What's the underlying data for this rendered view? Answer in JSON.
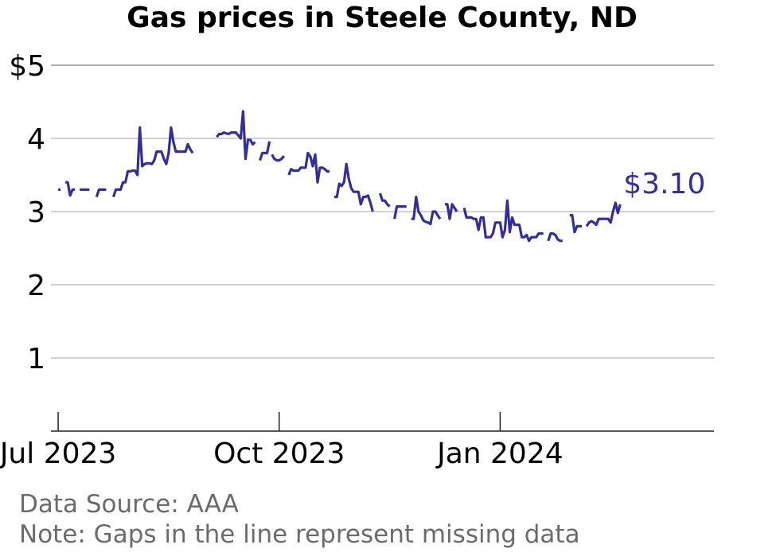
{
  "chart_data": {
    "type": "line",
    "title": "Gas prices in Steele County, ND",
    "xlabel": "",
    "ylabel": "",
    "ylim": [
      0,
      5
    ],
    "xlim": [
      "2023-06-28",
      "2024-03-30"
    ],
    "y_ticks": [
      1,
      2,
      3,
      4,
      5
    ],
    "y_tick_labels": [
      "1",
      "2",
      "3",
      "4",
      "$5"
    ],
    "x_ticks": [
      {
        "date": "2023-07-01",
        "label": "Jul 2023"
      },
      {
        "date": "2023-10-01",
        "label": "Oct 2023"
      },
      {
        "date": "2024-01-01",
        "label": "Jan 2024"
      }
    ],
    "grid": "horizontal",
    "line_color": "#332d9e",
    "end_label": "$3.10",
    "series": [
      {
        "segments": [
          [
            [
              "2023-07-01",
              3.3
            ],
            [
              "2023-07-02",
              3.3
            ]
          ],
          [
            [
              "2023-07-04",
              3.4
            ],
            [
              "2023-07-05",
              3.4
            ],
            [
              "2023-07-06",
              3.22
            ],
            [
              "2023-07-07",
              3.3
            ],
            [
              "2023-07-08",
              3.3
            ]
          ],
          [
            [
              "2023-07-10",
              3.3
            ],
            [
              "2023-07-11",
              3.3
            ],
            [
              "2023-07-12",
              3.3
            ],
            [
              "2023-07-13",
              3.3
            ],
            [
              "2023-07-14",
              3.3
            ]
          ],
          [
            [
              "2023-07-17",
              3.2
            ],
            [
              "2023-07-18",
              3.3
            ],
            [
              "2023-07-19",
              3.3
            ],
            [
              "2023-07-20",
              3.3
            ],
            [
              "2023-07-21",
              3.3
            ]
          ],
          [
            [
              "2023-07-24",
              3.2
            ],
            [
              "2023-07-25",
              3.3
            ],
            [
              "2023-07-26",
              3.3
            ],
            [
              "2023-07-27",
              3.3
            ],
            [
              "2023-07-28",
              3.4
            ],
            [
              "2023-07-29",
              3.4
            ],
            [
              "2023-07-30",
              3.55
            ],
            [
              "2023-07-31",
              3.55
            ],
            [
              "2023-08-01",
              3.56
            ],
            [
              "2023-08-02",
              3.56
            ],
            [
              "2023-08-03",
              3.5
            ],
            [
              "2023-08-04",
              4.15
            ],
            [
              "2023-08-05",
              3.62
            ],
            [
              "2023-08-06",
              3.65
            ],
            [
              "2023-08-07",
              3.66
            ],
            [
              "2023-08-08",
              3.66
            ],
            [
              "2023-08-09",
              3.65
            ],
            [
              "2023-08-10",
              3.7
            ],
            [
              "2023-08-11",
              3.82
            ],
            [
              "2023-08-12",
              3.82
            ],
            [
              "2023-08-13",
              3.82
            ],
            [
              "2023-08-14",
              3.72
            ],
            [
              "2023-08-15",
              3.65
            ],
            [
              "2023-08-16",
              3.8
            ],
            [
              "2023-08-17",
              4.15
            ],
            [
              "2023-08-18",
              3.95
            ],
            [
              "2023-08-19",
              3.82
            ],
            [
              "2023-08-20",
              3.82
            ],
            [
              "2023-08-21",
              3.82
            ],
            [
              "2023-08-22",
              3.82
            ],
            [
              "2023-08-23",
              3.82
            ],
            [
              "2023-08-24",
              3.92
            ],
            [
              "2023-08-25",
              3.85
            ],
            [
              "2023-08-26",
              3.8
            ]
          ],
          [
            [
              "2023-09-05",
              4.02
            ],
            [
              "2023-09-06",
              4.06
            ],
            [
              "2023-09-07",
              4.06
            ],
            [
              "2023-09-08",
              4.08
            ],
            [
              "2023-09-09",
              4.07
            ],
            [
              "2023-09-10",
              4.06
            ],
            [
              "2023-09-11",
              4.08
            ],
            [
              "2023-09-12",
              4.08
            ],
            [
              "2023-09-13",
              4.08
            ],
            [
              "2023-09-14",
              4.04
            ],
            [
              "2023-09-15",
              4.0
            ],
            [
              "2023-09-16",
              4.37
            ],
            [
              "2023-09-17",
              3.72
            ],
            [
              "2023-09-18",
              3.98
            ],
            [
              "2023-09-19",
              3.98
            ],
            [
              "2023-09-20",
              3.92
            ],
            [
              "2023-09-21",
              3.95
            ]
          ],
          [
            [
              "2023-09-23",
              3.7
            ],
            [
              "2023-09-24",
              3.8
            ],
            [
              "2023-09-25",
              3.8
            ],
            [
              "2023-09-26",
              3.8
            ],
            [
              "2023-09-27",
              3.96
            ]
          ],
          [
            [
              "2023-09-28",
              3.78
            ],
            [
              "2023-09-29",
              3.72
            ],
            [
              "2023-09-30",
              3.7
            ],
            [
              "2023-10-01",
              3.7
            ],
            [
              "2023-10-02",
              3.72
            ],
            [
              "2023-10-03",
              3.76
            ]
          ],
          [
            [
              "2023-10-05",
              3.5
            ],
            [
              "2023-10-06",
              3.58
            ],
            [
              "2023-10-07",
              3.56
            ],
            [
              "2023-10-08",
              3.56
            ],
            [
              "2023-10-09",
              3.56
            ],
            [
              "2023-10-10",
              3.6
            ],
            [
              "2023-10-11",
              3.6
            ],
            [
              "2023-10-12",
              3.6
            ],
            [
              "2023-10-13",
              3.8
            ],
            [
              "2023-10-14",
              3.75
            ],
            [
              "2023-10-15",
              3.62
            ],
            [
              "2023-10-16",
              3.78
            ],
            [
              "2023-10-17",
              3.4
            ],
            [
              "2023-10-18",
              3.6
            ],
            [
              "2023-10-19",
              3.6
            ],
            [
              "2023-10-20",
              3.58
            ],
            [
              "2023-10-21",
              3.55
            ],
            [
              "2023-10-22",
              3.55
            ]
          ],
          [
            [
              "2023-10-24",
              3.2
            ],
            [
              "2023-10-25",
              3.2
            ],
            [
              "2023-10-26",
              3.38
            ],
            [
              "2023-10-27",
              3.35
            ],
            [
              "2023-10-28",
              3.4
            ],
            [
              "2023-10-29",
              3.65
            ],
            [
              "2023-10-30",
              3.45
            ],
            [
              "2023-10-31",
              3.32
            ],
            [
              "2023-11-01",
              3.27
            ],
            [
              "2023-11-02",
              3.27
            ],
            [
              "2023-11-03",
              3.27
            ],
            [
              "2023-11-04",
              3.1
            ],
            [
              "2023-11-05",
              3.2
            ],
            [
              "2023-11-06",
              3.2
            ],
            [
              "2023-11-07",
              3.22
            ],
            [
              "2023-11-08",
              3.12
            ],
            [
              "2023-11-09",
              3.0
            ]
          ],
          [
            [
              "2023-11-12",
              3.25
            ],
            [
              "2023-11-13",
              3.15
            ],
            [
              "2023-11-14",
              3.15
            ],
            [
              "2023-11-15",
              3.1
            ],
            [
              "2023-11-16",
              3.07
            ]
          ],
          [
            [
              "2023-11-18",
              2.9
            ],
            [
              "2023-11-19",
              3.07
            ],
            [
              "2023-11-20",
              3.07
            ],
            [
              "2023-11-21",
              3.07
            ],
            [
              "2023-11-22",
              3.07
            ],
            [
              "2023-11-23",
              3.07
            ]
          ],
          [
            [
              "2023-11-25",
              2.9
            ],
            [
              "2023-11-26",
              2.9
            ],
            [
              "2023-11-27",
              3.2
            ],
            [
              "2023-11-28",
              3.0
            ],
            [
              "2023-11-29",
              2.95
            ],
            [
              "2023-11-30",
              2.88
            ],
            [
              "2023-12-01",
              2.86
            ],
            [
              "2023-12-02",
              2.85
            ],
            [
              "2023-12-03",
              2.83
            ],
            [
              "2023-12-04",
              3.0
            ],
            [
              "2023-12-05",
              3.0
            ],
            [
              "2023-12-06",
              2.95
            ],
            [
              "2023-12-07",
              2.9
            ]
          ],
          [
            [
              "2023-12-09",
              3.1
            ],
            [
              "2023-12-10",
              3.1
            ],
            [
              "2023-12-11",
              2.9
            ],
            [
              "2023-12-12",
              3.1
            ],
            [
              "2023-12-13",
              3.05
            ],
            [
              "2023-12-14",
              3.0
            ]
          ],
          [
            [
              "2023-12-17",
              3.05
            ],
            [
              "2023-12-18",
              2.92
            ],
            [
              "2023-12-19",
              2.92
            ],
            [
              "2023-12-20",
              2.92
            ],
            [
              "2023-12-21",
              2.9
            ],
            [
              "2023-12-22",
              2.9
            ],
            [
              "2023-12-23",
              2.75
            ],
            [
              "2023-12-24",
              2.92
            ],
            [
              "2023-12-25",
              2.92
            ],
            [
              "2023-12-26",
              2.65
            ],
            [
              "2023-12-27",
              2.65
            ],
            [
              "2023-12-28",
              2.65
            ],
            [
              "2023-12-29",
              2.7
            ],
            [
              "2023-12-30",
              2.85
            ],
            [
              "2023-12-31",
              2.85
            ],
            [
              "2024-01-01",
              2.85
            ],
            [
              "2024-01-02",
              2.65
            ],
            [
              "2024-01-03",
              2.75
            ],
            [
              "2024-01-04",
              3.15
            ],
            [
              "2024-01-05",
              2.72
            ],
            [
              "2024-01-06",
              2.92
            ],
            [
              "2024-01-07",
              2.82
            ],
            [
              "2024-01-08",
              2.82
            ],
            [
              "2024-01-09",
              2.82
            ],
            [
              "2024-01-10",
              2.65
            ],
            [
              "2024-01-11",
              2.65
            ],
            [
              "2024-01-12",
              2.68
            ],
            [
              "2024-01-13",
              2.6
            ],
            [
              "2024-01-14",
              2.65
            ],
            [
              "2024-01-15",
              2.65
            ],
            [
              "2024-01-16",
              2.65
            ],
            [
              "2024-01-17",
              2.7
            ],
            [
              "2024-01-18",
              2.7
            ],
            [
              "2024-01-19",
              2.7
            ]
          ],
          [
            [
              "2024-01-21",
              2.6
            ],
            [
              "2024-01-22",
              2.7
            ],
            [
              "2024-01-23",
              2.7
            ],
            [
              "2024-01-24",
              2.68
            ],
            [
              "2024-01-25",
              2.62
            ],
            [
              "2024-01-26",
              2.6
            ],
            [
              "2024-01-27",
              2.6
            ]
          ],
          [
            [
              "2024-01-30",
              2.95
            ],
            [
              "2024-01-31",
              2.95
            ],
            [
              "2024-02-01",
              2.72
            ],
            [
              "2024-02-02",
              2.8
            ],
            [
              "2024-02-03",
              2.8
            ],
            [
              "2024-02-04",
              2.8
            ]
          ],
          [
            [
              "2024-02-06",
              2.8
            ],
            [
              "2024-02-07",
              2.85
            ],
            [
              "2024-02-08",
              2.87
            ],
            [
              "2024-02-09",
              2.85
            ],
            [
              "2024-02-10",
              2.82
            ],
            [
              "2024-02-11",
              2.9
            ],
            [
              "2024-02-12",
              2.9
            ],
            [
              "2024-02-13",
              2.9
            ],
            [
              "2024-02-14",
              2.9
            ],
            [
              "2024-02-15",
              2.9
            ],
            [
              "2024-02-16",
              2.85
            ],
            [
              "2024-02-17",
              3.0
            ],
            [
              "2024-02-18",
              3.12
            ],
            [
              "2024-02-19",
              2.98
            ],
            [
              "2024-02-20",
              3.1
            ]
          ]
        ]
      }
    ]
  },
  "footer": {
    "source": "Data Source: AAA",
    "note": "Note: Gaps in the line represent missing data"
  }
}
